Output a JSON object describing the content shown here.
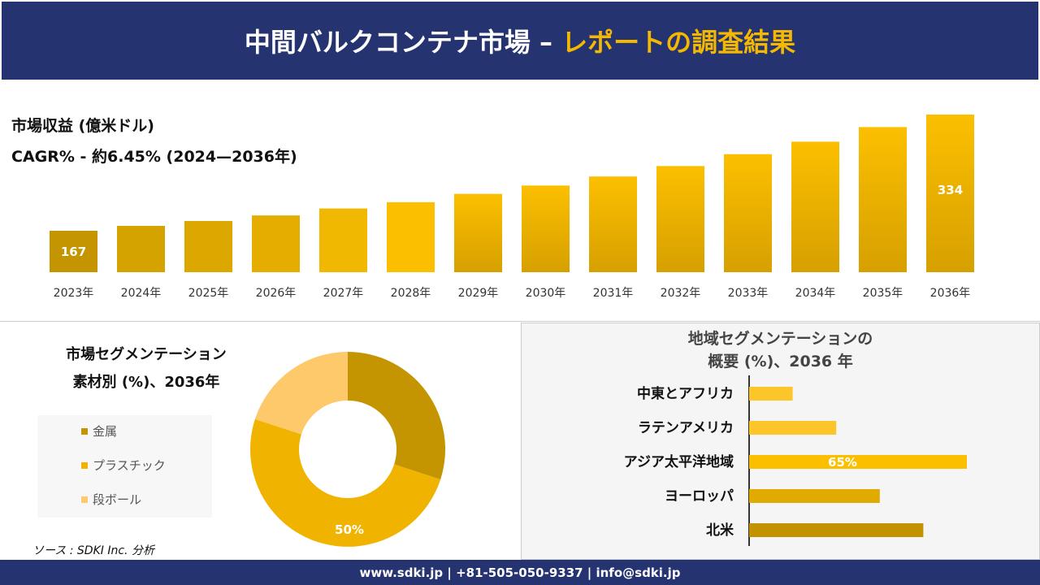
{
  "header": {
    "title_main": "中間バルクコンテナ市場 –",
    "title_accent": "レポートの調査結果"
  },
  "revenue": {
    "label": "市場収益 (億米ドル)",
    "cagr": "CAGR% - 約6.45% (2024—2036年)"
  },
  "chart_data": [
    {
      "type": "bar",
      "categories": [
        "2023年",
        "2024年",
        "2025年",
        "2026年",
        "2027年",
        "2028年",
        "2029年",
        "2030年",
        "2031年",
        "2032年",
        "2033年",
        "2034年",
        "2035年",
        "2036年"
      ],
      "values": [
        167,
        174,
        181,
        189,
        199,
        208,
        220,
        232,
        245,
        260,
        277,
        295,
        316,
        334
      ],
      "data_labels": {
        "0": "167",
        "13": "334"
      },
      "ylim": [
        107,
        334
      ],
      "grid": false
    },
    {
      "type": "pie",
      "variant": "donut",
      "title": "市場セグメンテーション 素材別 (%)、2036年",
      "categories": [
        "金属",
        "プラスチック",
        "段ボール"
      ],
      "values": [
        30,
        50,
        20
      ],
      "colors": [
        "#c49500",
        "#f0b400",
        "#fdc96a"
      ],
      "data_labels": {
        "1": "50%"
      },
      "legend": "left"
    },
    {
      "type": "bar",
      "orientation": "horizontal",
      "title": "地域セグメンテーションの 概要 (%)、2036 年",
      "categories": [
        "中東とアフリカ",
        "ラテンアメリカ",
        "アジア太平洋地域",
        "ヨーロッパ",
        "北米"
      ],
      "values": [
        13,
        26,
        65,
        39,
        52
      ],
      "colors": [
        "#fcc52a",
        "#fcc52a",
        "#fcbf00",
        "#e0aa00",
        "#c29200"
      ],
      "data_labels": {
        "2": "65%"
      }
    }
  ],
  "segment": {
    "title1": "市場セグメンテーション",
    "title2": "素材別 (%)、2036年"
  },
  "region": {
    "title1": "地域セグメンテーションの",
    "title2": "概要 (%)、2036 年"
  },
  "source": "ソース : SDKI Inc. 分析",
  "footer": "www.sdki.jp | +81-505-050-9337 | info@sdki.jp"
}
